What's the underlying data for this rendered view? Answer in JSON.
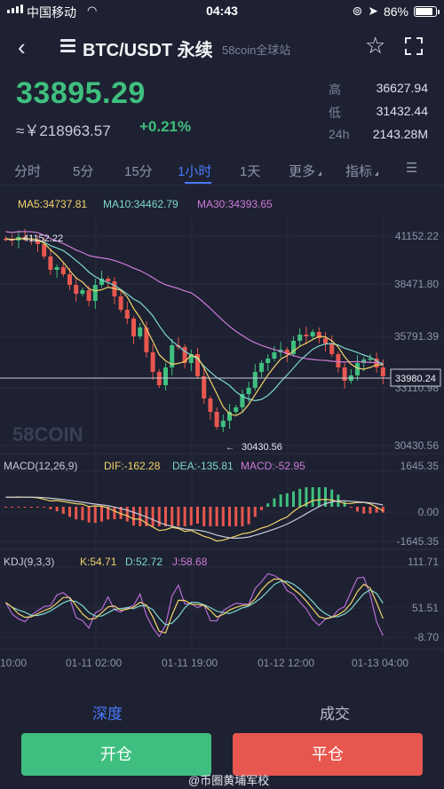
{
  "status": {
    "carrier": "中国移动",
    "time": "04:43",
    "battery": "86%",
    "battery_level": 0.86
  },
  "header": {
    "pair": "BTC/USDT 永续",
    "exchange": "58coin全球站"
  },
  "price": {
    "last": "33895.29",
    "cny": "≈￥218963.57",
    "change": "+0.21%"
  },
  "stats": [
    {
      "label": "高",
      "value": "36627.94"
    },
    {
      "label": "低",
      "value": "31432.44"
    },
    {
      "label": "24h",
      "value": "2143.28M"
    }
  ],
  "tabs": [
    "分时",
    "5分",
    "15分",
    "1小时",
    "1天",
    "更多",
    "指标"
  ],
  "active_tab": "1小时",
  "ma_legend": [
    {
      "text": "MA5:34737.81",
      "color": "#f3d46b"
    },
    {
      "text": "MA10:34462.79",
      "color": "#7fd8cf"
    },
    {
      "text": "MA30:34393.65",
      "color": "#d07ad8"
    }
  ],
  "price_axis": [
    "41152.22",
    "38471.80",
    "35791.39",
    "33110.98",
    "30430.56"
  ],
  "current_price_tag": "33980.24",
  "high_marker": "41152.22",
  "low_marker": "30430.56",
  "chart_watermark": "58COIN",
  "macd": {
    "title": "MACD(12,26,9)",
    "dif": "DIF:-162.28",
    "dea": "DEA:-135.81",
    "macd": "MACD:-52.95",
    "axis": [
      "1645.35",
      "0.00",
      "-1645.35"
    ]
  },
  "kdj": {
    "title": "KDJ(9,3,3)",
    "k": "K:54.71",
    "d": "D:52.72",
    "j": "J:58.68",
    "axis": [
      "111.71",
      "51.51",
      "-8.70"
    ]
  },
  "time_axis": [
    "10:00",
    "01-11 02:00",
    "01-11 19:00",
    "01-12 12:00",
    "01-13 04:00"
  ],
  "bottom_tabs": [
    "深度",
    "成交"
  ],
  "actions": {
    "open": "开仓",
    "close": "平仓"
  },
  "watermark": "@币圈黄埔军校",
  "colors": {
    "up": "#3fbf7f",
    "down": "#e8574f",
    "accent": "#4a7bff",
    "bg": "#1d2131"
  }
}
